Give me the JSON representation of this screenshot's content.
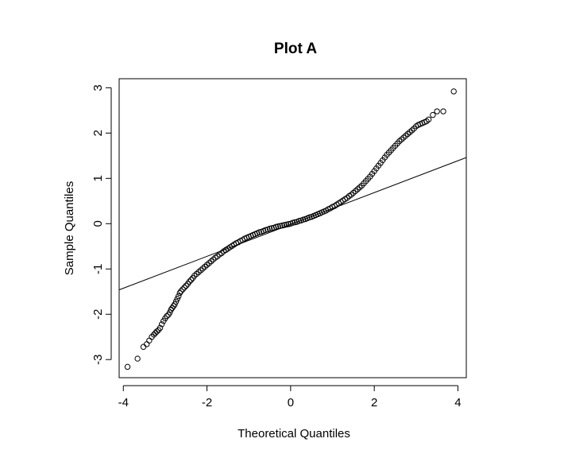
{
  "chart_data": {
    "type": "scatter",
    "title": "Plot  A",
    "xlabel": "Theoretical Quantiles",
    "ylabel": "Sample Quantiles",
    "xlim": [
      -4.1,
      4.2
    ],
    "ylim": [
      -3.4,
      3.2
    ],
    "x_ticks": [
      -4,
      -2,
      0,
      2,
      4
    ],
    "x_tick_labels": [
      "-4",
      "-2",
      "0",
      "2",
      "4"
    ],
    "y_ticks": [
      -3,
      -2,
      -1,
      0,
      1,
      2,
      3
    ],
    "y_tick_labels": [
      "-3",
      "-2",
      "-1",
      "0",
      "1",
      "2",
      "3"
    ],
    "grid": false,
    "series": [
      {
        "marker": "open-circle",
        "color": "#000000",
        "x": [
          -3.9,
          -3.66,
          -3.52,
          -3.44,
          -3.38,
          -3.32,
          -3.27,
          -3.23,
          -3.2,
          -3.16,
          -3.12,
          -3.08,
          -3.04,
          -3.0,
          -2.96,
          -2.92,
          -2.89,
          -2.86,
          -2.83,
          -2.8,
          -2.77,
          -2.74,
          -2.71,
          -2.68,
          -2.65,
          -2.62,
          -2.58,
          -2.54,
          -2.5,
          -2.46,
          -2.42,
          -2.38,
          -2.34,
          -2.3,
          -2.25,
          -2.2,
          -2.15,
          -2.1,
          -2.05,
          -2.0,
          -1.95,
          -1.9,
          -1.85,
          -1.8,
          -1.75,
          -1.7,
          -1.65,
          -1.6,
          -1.55,
          -1.5,
          -1.45,
          -1.4,
          -1.35,
          -1.3,
          -1.25,
          -1.2,
          -1.15,
          -1.1,
          -1.05,
          -1.0,
          -0.95,
          -0.9,
          -0.85,
          -0.8,
          -0.75,
          -0.7,
          -0.65,
          -0.6,
          -0.55,
          -0.5,
          -0.45,
          -0.4,
          -0.35,
          -0.3,
          -0.25,
          -0.2,
          -0.15,
          -0.1,
          -0.05,
          0.0,
          0.05,
          0.1,
          0.15,
          0.2,
          0.25,
          0.3,
          0.35,
          0.4,
          0.45,
          0.5,
          0.55,
          0.6,
          0.65,
          0.7,
          0.75,
          0.8,
          0.85,
          0.9,
          0.95,
          1.0,
          1.05,
          1.1,
          1.15,
          1.2,
          1.25,
          1.3,
          1.35,
          1.4,
          1.45,
          1.5,
          1.55,
          1.6,
          1.65,
          1.7,
          1.75,
          1.8,
          1.85,
          1.9,
          1.95,
          2.0,
          2.05,
          2.1,
          2.15,
          2.2,
          2.25,
          2.3,
          2.35,
          2.4,
          2.45,
          2.5,
          2.55,
          2.6,
          2.65,
          2.7,
          2.75,
          2.8,
          2.85,
          2.9,
          2.95,
          3.0,
          3.05,
          3.1,
          3.15,
          3.2,
          3.25,
          3.3,
          3.4,
          3.5,
          3.65,
          3.9
        ],
        "y": [
          -3.16,
          -2.98,
          -2.72,
          -2.66,
          -2.58,
          -2.5,
          -2.45,
          -2.41,
          -2.38,
          -2.35,
          -2.3,
          -2.22,
          -2.15,
          -2.09,
          -2.04,
          -2.01,
          -1.96,
          -1.9,
          -1.86,
          -1.82,
          -1.78,
          -1.72,
          -1.66,
          -1.6,
          -1.53,
          -1.49,
          -1.45,
          -1.41,
          -1.37,
          -1.33,
          -1.28,
          -1.24,
          -1.2,
          -1.15,
          -1.11,
          -1.07,
          -1.03,
          -0.99,
          -0.95,
          -0.91,
          -0.87,
          -0.83,
          -0.79,
          -0.75,
          -0.72,
          -0.68,
          -0.65,
          -0.61,
          -0.58,
          -0.55,
          -0.52,
          -0.49,
          -0.46,
          -0.43,
          -0.41,
          -0.38,
          -0.36,
          -0.33,
          -0.31,
          -0.29,
          -0.27,
          -0.25,
          -0.23,
          -0.21,
          -0.19,
          -0.18,
          -0.16,
          -0.14,
          -0.13,
          -0.11,
          -0.1,
          -0.09,
          -0.07,
          -0.06,
          -0.05,
          -0.04,
          -0.03,
          -0.02,
          -0.01,
          0.0,
          0.02,
          0.03,
          0.04,
          0.06,
          0.07,
          0.09,
          0.1,
          0.12,
          0.14,
          0.15,
          0.17,
          0.19,
          0.21,
          0.23,
          0.25,
          0.27,
          0.29,
          0.32,
          0.34,
          0.37,
          0.39,
          0.42,
          0.45,
          0.48,
          0.51,
          0.54,
          0.57,
          0.61,
          0.64,
          0.68,
          0.72,
          0.76,
          0.8,
          0.84,
          0.89,
          0.94,
          0.99,
          1.04,
          1.1,
          1.16,
          1.22,
          1.28,
          1.34,
          1.4,
          1.46,
          1.52,
          1.57,
          1.62,
          1.67,
          1.72,
          1.77,
          1.82,
          1.86,
          1.9,
          1.94,
          1.98,
          2.02,
          2.06,
          2.1,
          2.15,
          2.18,
          2.2,
          2.22,
          2.24,
          2.26,
          2.3,
          2.4,
          2.48,
          2.48,
          2.92
        ]
      }
    ],
    "reference_line": {
      "x": [
        -4.1,
        4.2
      ],
      "y": [
        -1.46,
        1.46
      ]
    }
  }
}
